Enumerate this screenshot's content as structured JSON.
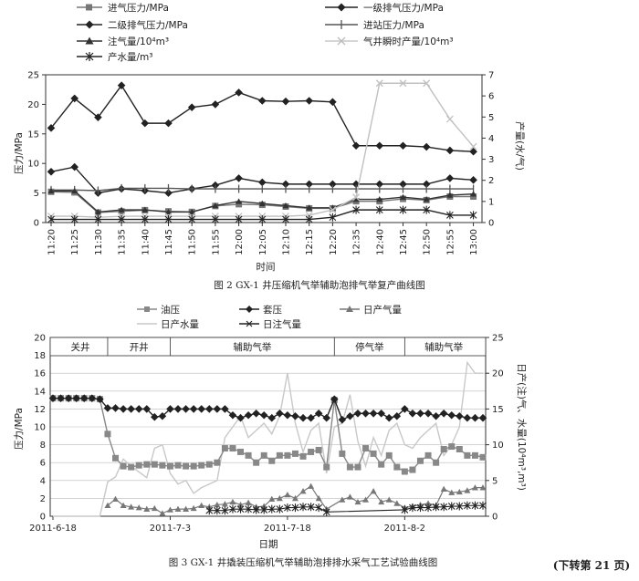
{
  "figure2": {
    "caption": "图 2  GX-1 井压缩机气举辅助泡排气举复产曲线图",
    "xlabel": "时间",
    "ylabel_left": "压力/MPa",
    "ylabel_right": "产量(水/气)",
    "legend": [
      {
        "label": "进气压力/MPa",
        "marker": "square",
        "color": "#777777"
      },
      {
        "label": "一级排气压力/MPa",
        "marker": "diamond",
        "color": "#222222"
      },
      {
        "label": "二级排气压力/MPa",
        "marker": "diamond",
        "color": "#222222"
      },
      {
        "label": "进站压力/MPa",
        "marker": "plus",
        "color": "#555555"
      },
      {
        "label": "注气量/10⁴m³",
        "marker": "triangle",
        "color": "#333333"
      },
      {
        "label": "气井瞬时产量/10⁴m³",
        "marker": "x",
        "color": "#c8c8c8"
      },
      {
        "label": "产水量/m³",
        "marker": "star",
        "color": "#222222"
      }
    ]
  },
  "figure3": {
    "caption": "图 3  GX-1 井撬装压缩机气举辅助泡排排水采气工艺试验曲线图",
    "xlabel": "日期",
    "ylabel_left": "压力/MPa",
    "ylabel_right": "日产(注)气、水量(10⁴m³,m³)",
    "phases": [
      "关井",
      "开井",
      "辅助气举",
      "停气举",
      "辅助气举"
    ],
    "legend": [
      {
        "label": "油压",
        "marker": "square",
        "color": "#888888"
      },
      {
        "label": "套压",
        "marker": "diamond",
        "color": "#222222"
      },
      {
        "label": "日产气量",
        "marker": "triangle",
        "color": "#777777"
      },
      {
        "label": "日产水量",
        "marker": "none",
        "color": "#c8c8c8"
      },
      {
        "label": "日注气量",
        "marker": "star",
        "color": "#222222"
      }
    ]
  },
  "footer": {
    "continue_note": "(下转第 21 页)"
  },
  "chart_data": [
    {
      "type": "line",
      "title": "图 2  GX-1 井压缩机气举辅助泡排气举复产曲线图",
      "xlabel": "时间",
      "ylabel": "压力/MPa",
      "y2label": "产量(水/气)",
      "x": [
        "11:20",
        "11:25",
        "11:30",
        "11:35",
        "11:40",
        "11:45",
        "11:50",
        "11:55",
        "12:00",
        "12:05",
        "12:10",
        "12:15",
        "12:20",
        "12:35",
        "12:40",
        "12:45",
        "12:50",
        "12:55",
        "13:00"
      ],
      "ylim": [
        0,
        25
      ],
      "y2lim": [
        0,
        7
      ],
      "grid": false,
      "series": [
        {
          "name": "二级排气压力/MPa",
          "axis": "left",
          "marker": "diamond",
          "values": [
            16,
            21,
            17.8,
            23.2,
            16.8,
            16.8,
            19.5,
            20,
            22,
            20.6,
            20.5,
            20.6,
            20.4,
            13,
            13,
            13,
            12.8,
            12.2,
            12
          ]
        },
        {
          "name": "一级排气压力/MPa",
          "axis": "left",
          "marker": "diamond",
          "values": [
            8.6,
            9.4,
            5,
            5.7,
            5.4,
            5,
            5.7,
            6.3,
            7.5,
            6.8,
            6.5,
            6.5,
            6.5,
            6.5,
            6.5,
            6.5,
            6.5,
            7.5,
            7.2
          ]
        },
        {
          "name": "进站压力/MPa",
          "axis": "left",
          "marker": "plus",
          "values": [
            5.5,
            5.5,
            5.4,
            5.8,
            5.8,
            5.8,
            5.7,
            5.7,
            5.7,
            5.7,
            5.7,
            5.7,
            5.7,
            5.7,
            5.7,
            5.7,
            5.7,
            5.7,
            5.7
          ]
        },
        {
          "name": "进气压力/MPa",
          "axis": "left",
          "marker": "square",
          "values": [
            5.2,
            5.1,
            1.7,
            1.9,
            2.1,
            1.9,
            1.8,
            2.8,
            3.1,
            3,
            2.7,
            2.4,
            2.4,
            3.6,
            3.6,
            4,
            3.8,
            4.4,
            4.4
          ]
        },
        {
          "name": "注气量/10⁴m³",
          "axis": "right",
          "marker": "triangle",
          "values": [
            1.5,
            1.5,
            0.5,
            0.6,
            0.6,
            0.5,
            0.5,
            0.8,
            1,
            0.9,
            0.8,
            0.7,
            0.7,
            1.1,
            1.1,
            1.2,
            1.1,
            1.3,
            1.35
          ]
        },
        {
          "name": "气井瞬时产量/10⁴m³",
          "axis": "right",
          "marker": "x",
          "values": [
            0.3,
            0.3,
            0.25,
            0.3,
            0.3,
            0.3,
            0.3,
            0.3,
            0.3,
            0.3,
            0.3,
            0.35,
            0.6,
            1.2,
            6.6,
            6.6,
            6.6,
            4.9,
            3.6
          ]
        },
        {
          "name": "产水量/m³",
          "axis": "right",
          "marker": "star",
          "values": [
            0.15,
            0.15,
            0.15,
            0.15,
            0.15,
            0.15,
            0.15,
            0.15,
            0.15,
            0.15,
            0.15,
            0.15,
            0.25,
            0.6,
            0.6,
            0.6,
            0.6,
            0.35,
            0.35
          ]
        }
      ]
    },
    {
      "type": "line",
      "title": "图 3  GX-1 井撬装压缩机气举辅助泡排排水采气工艺试验曲线图",
      "xlabel": "日期",
      "ylabel": "压力/MPa",
      "y2label": "日产(注)气、水量(10⁴m³,m³)",
      "x_tick_labels": [
        "2011-6-18",
        "2011-7-3",
        "2011-7-18",
        "2011-8-2"
      ],
      "x_day_range": [
        0,
        55
      ],
      "ylim": [
        0,
        20
      ],
      "y2lim": [
        0,
        25
      ],
      "phase_labels": [
        "关井",
        "开井",
        "辅助气举",
        "停气举",
        "辅助气举"
      ],
      "grid": true,
      "series": [
        {
          "name": "套压",
          "axis": "left",
          "marker": "diamond",
          "x": [
            0,
            1,
            2,
            3,
            4,
            5,
            6,
            7,
            8,
            9,
            10,
            11,
            12,
            13,
            14,
            15,
            16,
            17,
            18,
            19,
            20,
            21,
            22,
            23,
            24,
            25,
            26,
            27,
            28,
            29,
            30,
            31,
            32,
            33,
            34,
            35,
            36,
            37,
            38,
            39,
            40,
            41,
            42,
            43,
            44,
            45,
            46,
            47,
            48,
            49,
            50,
            51,
            52,
            53,
            54,
            55
          ],
          "values": [
            13.2,
            13.2,
            13.2,
            13.2,
            13.2,
            13.2,
            13.1,
            12.1,
            12.1,
            12,
            12,
            12,
            12,
            11.1,
            11.2,
            12,
            12,
            12,
            12,
            12,
            12,
            12,
            12,
            11.3,
            11,
            11.3,
            11.5,
            11.3,
            11,
            11.5,
            11.3,
            11.2,
            11,
            11,
            11.5,
            11,
            13.1,
            10.8,
            11.2,
            11.5,
            11.5,
            11.5,
            11.5,
            11,
            11.2,
            12,
            11.5,
            11.5,
            11.5,
            11.2,
            11.5,
            11.3,
            11.2,
            11,
            11,
            11
          ]
        },
        {
          "name": "油压",
          "axis": "left",
          "marker": "square",
          "x": [
            0,
            1,
            2,
            3,
            4,
            5,
            6,
            7,
            8,
            9,
            10,
            11,
            12,
            13,
            14,
            15,
            16,
            17,
            18,
            19,
            20,
            21,
            22,
            23,
            24,
            25,
            26,
            27,
            28,
            29,
            30,
            31,
            32,
            33,
            34,
            35,
            36,
            37,
            38,
            39,
            40,
            41,
            42,
            43,
            44,
            45,
            46,
            47,
            48,
            49,
            50,
            51,
            52,
            53,
            54,
            55
          ],
          "values": [
            13.2,
            13.2,
            13.2,
            13.2,
            13.2,
            13.2,
            13.1,
            9.2,
            6.5,
            5.6,
            5.5,
            5.7,
            5.8,
            5.8,
            5.7,
            5.6,
            5.7,
            5.6,
            5.6,
            5.7,
            5.8,
            6,
            7.6,
            7.6,
            7.2,
            6.8,
            6,
            6.8,
            6.2,
            6.8,
            6.8,
            7,
            6.7,
            7.2,
            7.4,
            5.5,
            13,
            7,
            5.5,
            5.5,
            7.6,
            7,
            5.8,
            6.8,
            5.5,
            5,
            5.2,
            6.2,
            6.8,
            6,
            7.5,
            7.8,
            7.5,
            6.8,
            6.8,
            6.6
          ]
        },
        {
          "name": "日产气量",
          "axis": "right",
          "marker": "triangle",
          "x": [
            7,
            8,
            9,
            10,
            11,
            12,
            13,
            14,
            15,
            16,
            17,
            18,
            19,
            20,
            21,
            22,
            23,
            24,
            25,
            26,
            27,
            28,
            29,
            30,
            31,
            32,
            33,
            34,
            35,
            37,
            38,
            39,
            40,
            41,
            42,
            43,
            44,
            45,
            46,
            47,
            48,
            49,
            50,
            51,
            52,
            53,
            54,
            55
          ],
          "values": [
            1.5,
            2.4,
            1.5,
            1.3,
            1.2,
            1,
            1.1,
            0.4,
            0.9,
            1,
            1,
            1.1,
            1.5,
            1.3,
            1.6,
            1.7,
            2,
            1.6,
            1.9,
            1.3,
            1.4,
            2.4,
            2.5,
            3,
            2.5,
            3.5,
            4.2,
            2.5,
            1,
            2.3,
            2.7,
            2,
            2.3,
            3.5,
            2,
            2.3,
            1.8,
            1.2,
            1.4,
            1.6,
            1.8,
            1.5,
            3.8,
            3.3,
            3.4,
            3.6,
            4,
            4
          ]
        },
        {
          "name": "日产水量",
          "axis": "right",
          "marker": "none",
          "x": [
            0,
            1,
            2,
            3,
            4,
            5,
            6,
            7,
            8,
            9,
            10,
            11,
            12,
            13,
            14,
            15,
            16,
            17,
            18,
            19,
            20,
            21,
            22,
            23,
            24,
            25,
            26,
            27,
            28,
            29,
            30,
            31,
            32,
            33,
            34,
            35,
            36,
            37,
            38,
            39,
            40,
            41,
            42,
            43,
            44,
            45,
            46,
            47,
            48,
            49,
            50,
            51,
            52,
            53,
            54,
            55
          ],
          "values": [
            0,
            0,
            0,
            0,
            0,
            0,
            0,
            4.8,
            5.5,
            8,
            7,
            6.2,
            5.4,
            9.5,
            10,
            6,
            4.5,
            5,
            3.2,
            4,
            4.5,
            5,
            11,
            12.5,
            14,
            11,
            12,
            13,
            11.5,
            14,
            20,
            13,
            9,
            12,
            13,
            6,
            12.5,
            13,
            17,
            10.5,
            7,
            11,
            8.5,
            12,
            13,
            10,
            9.5,
            11,
            12,
            13,
            8.5,
            10,
            12.5,
            21.5,
            20,
            20
          ]
        },
        {
          "name": "日注气量",
          "axis": "right",
          "marker": "star",
          "x": [
            20,
            21,
            22,
            23,
            24,
            25,
            26,
            27,
            28,
            29,
            30,
            31,
            32,
            33,
            34,
            35,
            45,
            46,
            47,
            48,
            49,
            50,
            51,
            52,
            53,
            54,
            55
          ],
          "values": [
            0.8,
            0.8,
            0.8,
            1,
            1,
            1,
            0.9,
            0.9,
            1,
            1,
            1.2,
            1.2,
            1.3,
            1.3,
            1.2,
            0.6,
            0.9,
            1.2,
            1.2,
            1.2,
            1.3,
            1.3,
            1.4,
            1.4,
            1.5,
            1.5,
            1.5
          ]
        }
      ]
    }
  ]
}
